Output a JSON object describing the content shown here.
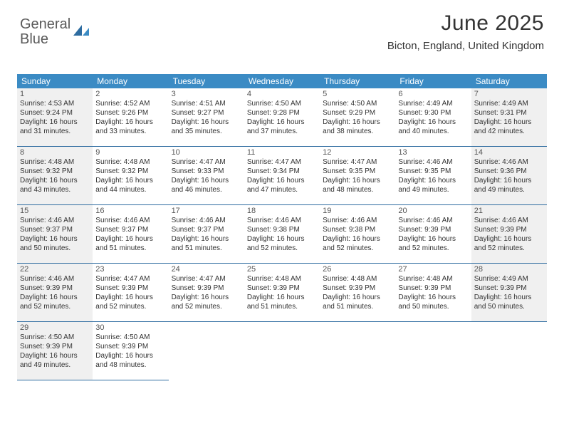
{
  "logo": {
    "text_gray": "General",
    "text_blue": "Blue"
  },
  "header": {
    "title": "June 2025",
    "location": "Bicton, England, United Kingdom"
  },
  "colors": {
    "header_bg": "#3b8bc4",
    "header_text": "#ffffff",
    "border": "#2e6ca0",
    "shaded_bg": "#f0f0f0"
  },
  "weekdays": [
    "Sunday",
    "Monday",
    "Tuesday",
    "Wednesday",
    "Thursday",
    "Friday",
    "Saturday"
  ],
  "days": [
    {
      "num": "1",
      "shaded": true,
      "sunrise": "Sunrise: 4:53 AM",
      "sunset": "Sunset: 9:24 PM",
      "daylight1": "Daylight: 16 hours",
      "daylight2": "and 31 minutes."
    },
    {
      "num": "2",
      "shaded": false,
      "sunrise": "Sunrise: 4:52 AM",
      "sunset": "Sunset: 9:26 PM",
      "daylight1": "Daylight: 16 hours",
      "daylight2": "and 33 minutes."
    },
    {
      "num": "3",
      "shaded": false,
      "sunrise": "Sunrise: 4:51 AM",
      "sunset": "Sunset: 9:27 PM",
      "daylight1": "Daylight: 16 hours",
      "daylight2": "and 35 minutes."
    },
    {
      "num": "4",
      "shaded": false,
      "sunrise": "Sunrise: 4:50 AM",
      "sunset": "Sunset: 9:28 PM",
      "daylight1": "Daylight: 16 hours",
      "daylight2": "and 37 minutes."
    },
    {
      "num": "5",
      "shaded": false,
      "sunrise": "Sunrise: 4:50 AM",
      "sunset": "Sunset: 9:29 PM",
      "daylight1": "Daylight: 16 hours",
      "daylight2": "and 38 minutes."
    },
    {
      "num": "6",
      "shaded": false,
      "sunrise": "Sunrise: 4:49 AM",
      "sunset": "Sunset: 9:30 PM",
      "daylight1": "Daylight: 16 hours",
      "daylight2": "and 40 minutes."
    },
    {
      "num": "7",
      "shaded": true,
      "sunrise": "Sunrise: 4:49 AM",
      "sunset": "Sunset: 9:31 PM",
      "daylight1": "Daylight: 16 hours",
      "daylight2": "and 42 minutes."
    },
    {
      "num": "8",
      "shaded": true,
      "sunrise": "Sunrise: 4:48 AM",
      "sunset": "Sunset: 9:32 PM",
      "daylight1": "Daylight: 16 hours",
      "daylight2": "and 43 minutes."
    },
    {
      "num": "9",
      "shaded": false,
      "sunrise": "Sunrise: 4:48 AM",
      "sunset": "Sunset: 9:32 PM",
      "daylight1": "Daylight: 16 hours",
      "daylight2": "and 44 minutes."
    },
    {
      "num": "10",
      "shaded": false,
      "sunrise": "Sunrise: 4:47 AM",
      "sunset": "Sunset: 9:33 PM",
      "daylight1": "Daylight: 16 hours",
      "daylight2": "and 46 minutes."
    },
    {
      "num": "11",
      "shaded": false,
      "sunrise": "Sunrise: 4:47 AM",
      "sunset": "Sunset: 9:34 PM",
      "daylight1": "Daylight: 16 hours",
      "daylight2": "and 47 minutes."
    },
    {
      "num": "12",
      "shaded": false,
      "sunrise": "Sunrise: 4:47 AM",
      "sunset": "Sunset: 9:35 PM",
      "daylight1": "Daylight: 16 hours",
      "daylight2": "and 48 minutes."
    },
    {
      "num": "13",
      "shaded": false,
      "sunrise": "Sunrise: 4:46 AM",
      "sunset": "Sunset: 9:35 PM",
      "daylight1": "Daylight: 16 hours",
      "daylight2": "and 49 minutes."
    },
    {
      "num": "14",
      "shaded": true,
      "sunrise": "Sunrise: 4:46 AM",
      "sunset": "Sunset: 9:36 PM",
      "daylight1": "Daylight: 16 hours",
      "daylight2": "and 49 minutes."
    },
    {
      "num": "15",
      "shaded": true,
      "sunrise": "Sunrise: 4:46 AM",
      "sunset": "Sunset: 9:37 PM",
      "daylight1": "Daylight: 16 hours",
      "daylight2": "and 50 minutes."
    },
    {
      "num": "16",
      "shaded": false,
      "sunrise": "Sunrise: 4:46 AM",
      "sunset": "Sunset: 9:37 PM",
      "daylight1": "Daylight: 16 hours",
      "daylight2": "and 51 minutes."
    },
    {
      "num": "17",
      "shaded": false,
      "sunrise": "Sunrise: 4:46 AM",
      "sunset": "Sunset: 9:37 PM",
      "daylight1": "Daylight: 16 hours",
      "daylight2": "and 51 minutes."
    },
    {
      "num": "18",
      "shaded": false,
      "sunrise": "Sunrise: 4:46 AM",
      "sunset": "Sunset: 9:38 PM",
      "daylight1": "Daylight: 16 hours",
      "daylight2": "and 52 minutes."
    },
    {
      "num": "19",
      "shaded": false,
      "sunrise": "Sunrise: 4:46 AM",
      "sunset": "Sunset: 9:38 PM",
      "daylight1": "Daylight: 16 hours",
      "daylight2": "and 52 minutes."
    },
    {
      "num": "20",
      "shaded": false,
      "sunrise": "Sunrise: 4:46 AM",
      "sunset": "Sunset: 9:39 PM",
      "daylight1": "Daylight: 16 hours",
      "daylight2": "and 52 minutes."
    },
    {
      "num": "21",
      "shaded": true,
      "sunrise": "Sunrise: 4:46 AM",
      "sunset": "Sunset: 9:39 PM",
      "daylight1": "Daylight: 16 hours",
      "daylight2": "and 52 minutes."
    },
    {
      "num": "22",
      "shaded": true,
      "sunrise": "Sunrise: 4:46 AM",
      "sunset": "Sunset: 9:39 PM",
      "daylight1": "Daylight: 16 hours",
      "daylight2": "and 52 minutes."
    },
    {
      "num": "23",
      "shaded": false,
      "sunrise": "Sunrise: 4:47 AM",
      "sunset": "Sunset: 9:39 PM",
      "daylight1": "Daylight: 16 hours",
      "daylight2": "and 52 minutes."
    },
    {
      "num": "24",
      "shaded": false,
      "sunrise": "Sunrise: 4:47 AM",
      "sunset": "Sunset: 9:39 PM",
      "daylight1": "Daylight: 16 hours",
      "daylight2": "and 52 minutes."
    },
    {
      "num": "25",
      "shaded": false,
      "sunrise": "Sunrise: 4:48 AM",
      "sunset": "Sunset: 9:39 PM",
      "daylight1": "Daylight: 16 hours",
      "daylight2": "and 51 minutes."
    },
    {
      "num": "26",
      "shaded": false,
      "sunrise": "Sunrise: 4:48 AM",
      "sunset": "Sunset: 9:39 PM",
      "daylight1": "Daylight: 16 hours",
      "daylight2": "and 51 minutes."
    },
    {
      "num": "27",
      "shaded": false,
      "sunrise": "Sunrise: 4:48 AM",
      "sunset": "Sunset: 9:39 PM",
      "daylight1": "Daylight: 16 hours",
      "daylight2": "and 50 minutes."
    },
    {
      "num": "28",
      "shaded": true,
      "sunrise": "Sunrise: 4:49 AM",
      "sunset": "Sunset: 9:39 PM",
      "daylight1": "Daylight: 16 hours",
      "daylight2": "and 50 minutes."
    },
    {
      "num": "29",
      "shaded": true,
      "sunrise": "Sunrise: 4:50 AM",
      "sunset": "Sunset: 9:39 PM",
      "daylight1": "Daylight: 16 hours",
      "daylight2": "and 49 minutes."
    },
    {
      "num": "30",
      "shaded": false,
      "sunrise": "Sunrise: 4:50 AM",
      "sunset": "Sunset: 9:39 PM",
      "daylight1": "Daylight: 16 hours",
      "daylight2": "and 48 minutes."
    }
  ]
}
